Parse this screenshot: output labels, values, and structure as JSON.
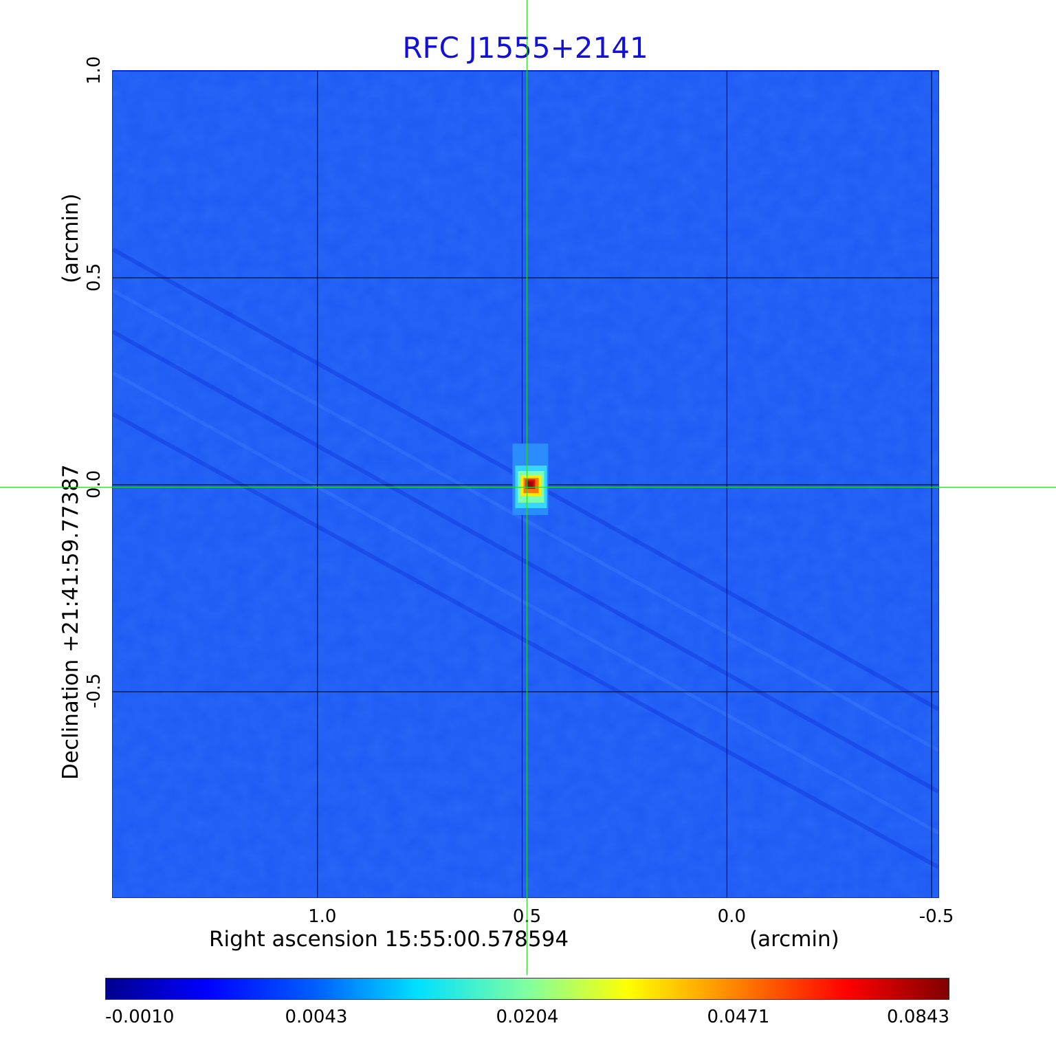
{
  "chart_data": {
    "type": "heatmap",
    "title": "RFC J1555+2141",
    "xlabel": "Right ascension  15:55:00.578594",
    "xunit": "(arcmin)",
    "ylabel": "Declination  +21:41:59.77387",
    "yunit": "(arcmin)",
    "x_ticks": [
      "1.0",
      "0.5",
      "0.0",
      "-0.5"
    ],
    "y_ticks": [
      "1.0",
      "0.5",
      "0.0",
      "-0.5"
    ],
    "xlim": [
      1.5,
      -0.52
    ],
    "ylim": [
      -1.0,
      1.0
    ],
    "grid": true,
    "colormap": "jet",
    "colorbar_ticks": [
      "-0.0010",
      "0.0043",
      "0.0204",
      "0.0471",
      "0.0843"
    ],
    "source_peak": {
      "x": 0.48,
      "y": 0.0,
      "value": 0.0843
    },
    "crosshair": {
      "x": 0.48,
      "y": 0.0
    },
    "colors": {
      "title": "#1010d8",
      "background": "#1e5af5",
      "crosshair": "#2adb2a",
      "grid": "#000000"
    }
  }
}
